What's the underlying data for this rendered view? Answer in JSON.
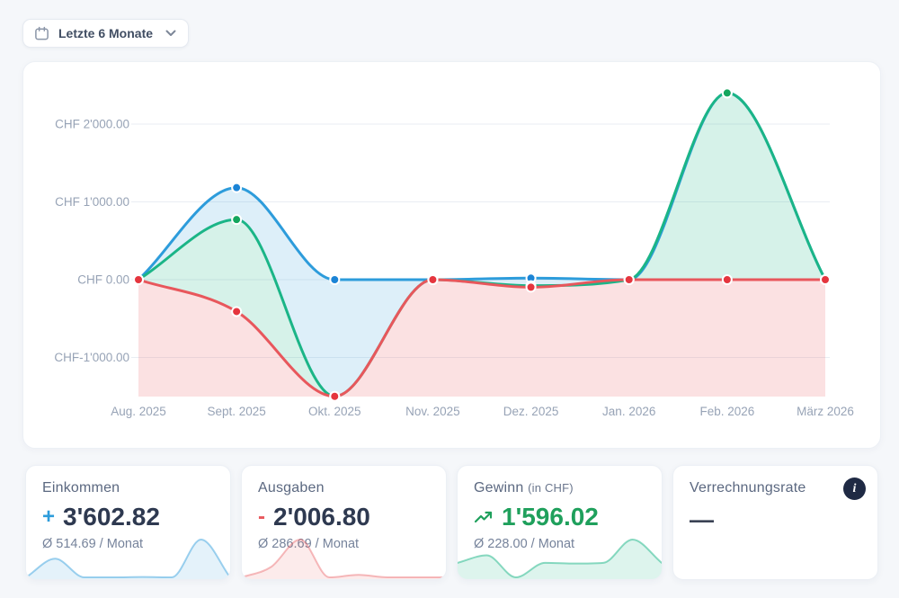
{
  "filter": {
    "label": "Letzte 6 Monate"
  },
  "chart_data": {
    "type": "area",
    "title": "",
    "x_labels": [
      "Aug. 2025",
      "Sept. 2025",
      "Okt. 2025",
      "Nov. 2025",
      "Dez. 2025",
      "Jan. 2026",
      "Feb. 2026",
      "März 2026"
    ],
    "y_ticks": [
      {
        "label": "CHF 2'000.00",
        "value": 2000
      },
      {
        "label": "CHF 1'000.00",
        "value": 1000
      },
      {
        "label": "CHF 0.00",
        "value": 0
      },
      {
        "label": "CHF-1'000.00",
        "value": -1000
      }
    ],
    "ylim": [
      -1550,
      2500
    ],
    "grid": true,
    "legend": "none",
    "currency": "CHF",
    "series": [
      {
        "name": "Einkommen",
        "color": "#2D9CDB",
        "dot": "#1B84D6",
        "fill": "rgba(45,156,219,0.16)",
        "values": [
          0,
          1182.82,
          0,
          0,
          20,
          0,
          2400,
          0
        ]
      },
      {
        "name": "Gewinn",
        "color": "#1BB587",
        "dot": "#14A65D",
        "fill": "rgba(27,181,135,0.18)",
        "values": [
          0,
          772.82,
          -1500,
          0,
          -76.8,
          0,
          2400,
          0
        ]
      },
      {
        "name": "Ausgaben",
        "color": "#E8575C",
        "dot": "#E5353E",
        "fill": "rgba(232,87,92,0.18)",
        "values": [
          0,
          -410,
          -1500,
          0,
          -96.8,
          0,
          0,
          0
        ]
      }
    ],
    "fill_between": [
      [
        0,
        1
      ],
      [
        1,
        2
      ],
      [
        2,
        "bottom"
      ]
    ]
  },
  "cards": [
    {
      "title": "Einkommen",
      "sign": "+",
      "value": "3'602.82",
      "avg": "Ø 514.69 / Monat",
      "accent": "#2D9CDB",
      "spark_values": [
        0,
        1182.82,
        0,
        0,
        20,
        0,
        2400,
        0
      ],
      "spark_stroke": "rgba(45,156,219,0.45)",
      "spark_fill": "rgba(45,156,219,0.13)"
    },
    {
      "title": "Ausgaben",
      "sign": "-",
      "value": "2'006.80",
      "avg": "Ø 286.69 / Monat",
      "accent": "#E8575C",
      "spark_values": [
        0,
        410,
        1500,
        0,
        96.8,
        0,
        0,
        0
      ],
      "spark_stroke": "rgba(232,87,92,0.40)",
      "spark_fill": "rgba(232,87,92,0.12)"
    },
    {
      "title": "Gewinn",
      "title_suffix": "(in CHF)",
      "value": "1'596.02",
      "avg": "Ø 228.00 / Monat",
      "accent": "#1FA05C",
      "spark_values": [
        0,
        772.82,
        -1500,
        0,
        -76.8,
        0,
        2400,
        0
      ],
      "spark_stroke": "rgba(27,181,135,0.50)",
      "spark_fill": "rgba(27,181,135,0.15)"
    },
    {
      "title": "Verrechnungsrate",
      "value": "—"
    }
  ]
}
